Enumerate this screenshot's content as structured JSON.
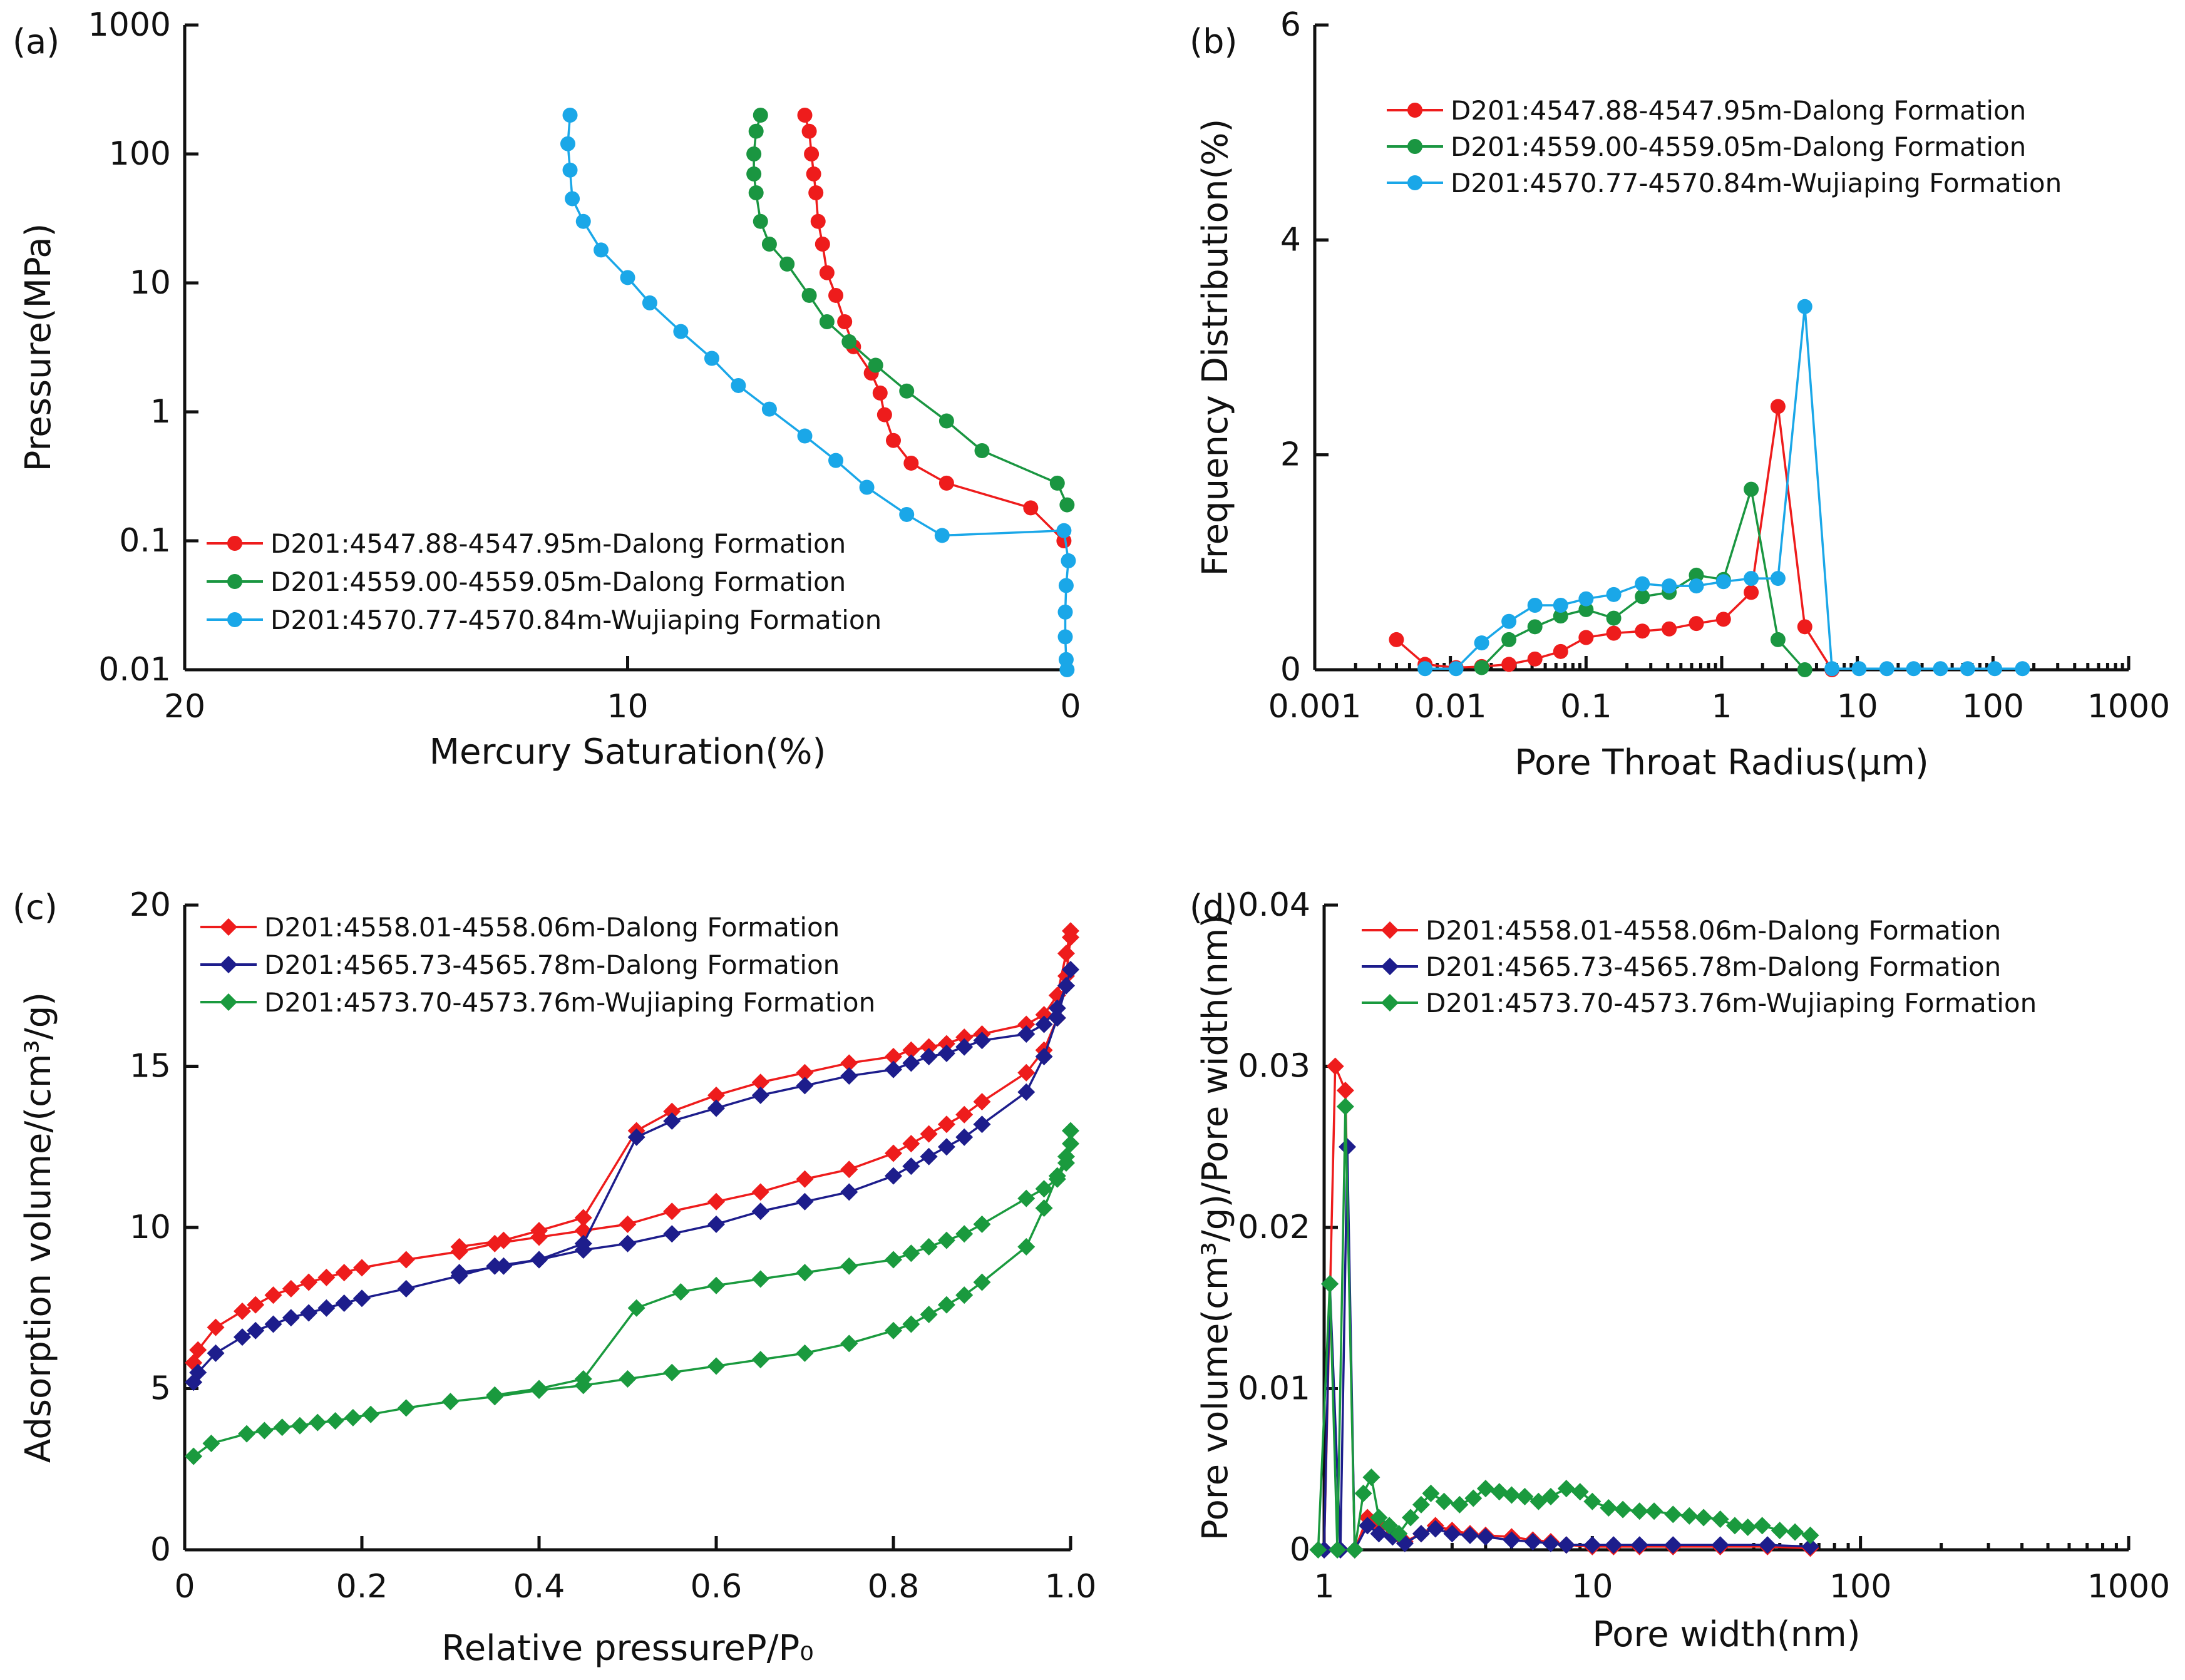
{
  "chart_data": [
    {
      "panel_label": "(a)",
      "type": "line",
      "xlabel": "Mercury Saturation(%)",
      "ylabel": "Pressure(MPa)",
      "xlim": [
        20,
        0
      ],
      "ylim": [
        0.01,
        1000
      ],
      "x_scale": "linear-reversed",
      "y_scale": "log",
      "x_ticks": [
        20,
        10,
        0
      ],
      "x_tick_labels": [
        "20",
        "10",
        "0"
      ],
      "y_ticks": [
        0.01,
        0.1,
        1,
        10,
        100,
        1000
      ],
      "y_tick_labels": [
        "0.01",
        "0.1",
        "1",
        "10",
        "100",
        "1000"
      ],
      "legend_position": "bottom-left",
      "marker": "circle",
      "series": [
        {
          "name": "D201:4547.88-4547.95m-Dalong Formation",
          "color": "#ee1c1c",
          "x": [
            6.0,
            5.9,
            5.85,
            5.8,
            5.75,
            5.7,
            5.6,
            5.5,
            5.3,
            5.1,
            4.9,
            4.5,
            4.3,
            4.2,
            4.0,
            3.6,
            2.8,
            0.9,
            0.15
          ],
          "y": [
            200,
            150,
            100,
            70,
            50,
            30,
            20,
            12,
            8,
            5,
            3.2,
            2.0,
            1.4,
            0.95,
            0.6,
            0.4,
            0.28,
            0.18,
            0.1
          ]
        },
        {
          "name": "D201:4559.00-4559.05m-Dalong Formation",
          "color": "#1a9641",
          "x": [
            7.0,
            7.1,
            7.15,
            7.15,
            7.1,
            7.0,
            6.8,
            6.4,
            5.9,
            5.5,
            5.0,
            4.4,
            3.7,
            2.8,
            2.0,
            0.3,
            0.08
          ],
          "y": [
            200,
            150,
            100,
            70,
            50,
            30,
            20,
            14,
            8,
            5,
            3.5,
            2.3,
            1.45,
            0.85,
            0.5,
            0.28,
            0.19
          ]
        },
        {
          "name": "D201:4570.77-4570.84m-Wujiaping Formation",
          "color": "#1aa7e8",
          "x": [
            11.3,
            11.35,
            11.3,
            11.25,
            11.0,
            10.6,
            10.0,
            9.5,
            8.8,
            8.1,
            7.5,
            6.8,
            6.0,
            5.3,
            4.6,
            3.7,
            2.9,
            0.15,
            0.05,
            0.1,
            0.12,
            0.12,
            0.1,
            0.08
          ],
          "y": [
            200,
            120,
            75,
            45,
            30,
            18,
            11,
            7,
            4.2,
            2.6,
            1.6,
            1.05,
            0.65,
            0.42,
            0.26,
            0.16,
            0.11,
            0.12,
            0.07,
            0.045,
            0.028,
            0.018,
            0.012,
            0.01
          ]
        }
      ]
    },
    {
      "panel_label": "(b)",
      "type": "line",
      "xlabel": "Pore Throat Radius(μm)",
      "ylabel": "Frequency Distribution(%)",
      "xlim": [
        0.001,
        1000
      ],
      "ylim": [
        0,
        6
      ],
      "x_scale": "log",
      "y_scale": "linear",
      "x_ticks": [
        0.001,
        0.01,
        0.1,
        1,
        10,
        100,
        1000
      ],
      "x_tick_labels": [
        "0.001",
        "0.01",
        "0.1",
        "1",
        "10",
        "100",
        "1000"
      ],
      "y_ticks": [
        0,
        2,
        4,
        6
      ],
      "y_tick_labels": [
        "0",
        "2",
        "4",
        "6"
      ],
      "legend_position": "top-left",
      "marker": "circle",
      "series": [
        {
          "name": "D201:4547.88-4547.95m-Dalong Formation",
          "color": "#ee1c1c",
          "x": [
            0.004,
            0.0065,
            0.011,
            0.017,
            0.027,
            0.042,
            0.065,
            0.1,
            0.16,
            0.26,
            0.41,
            0.65,
            1.03,
            1.65,
            2.6,
            4.1,
            6.5
          ],
          "y": [
            0.28,
            0.05,
            0.02,
            0.03,
            0.05,
            0.1,
            0.17,
            0.3,
            0.34,
            0.36,
            0.38,
            0.43,
            0.47,
            0.72,
            2.45,
            0.4,
            0.0
          ]
        },
        {
          "name": "D201:4559.00-4559.05m-Dalong Formation",
          "color": "#1a9641",
          "x": [
            0.017,
            0.027,
            0.042,
            0.065,
            0.1,
            0.16,
            0.26,
            0.41,
            0.65,
            1.03,
            1.65,
            2.6,
            4.1
          ],
          "y": [
            0.02,
            0.28,
            0.4,
            0.5,
            0.56,
            0.48,
            0.68,
            0.72,
            0.88,
            0.84,
            1.68,
            0.28,
            0.0
          ]
        },
        {
          "name": "D201:4570.77-4570.84m-Wujiaping Formation",
          "color": "#1aa7e8",
          "x": [
            0.0065,
            0.011,
            0.017,
            0.027,
            0.042,
            0.065,
            0.1,
            0.16,
            0.26,
            0.41,
            0.65,
            1.03,
            1.65,
            2.6,
            4.1,
            6.5,
            10.3,
            16.5,
            26,
            41,
            65,
            103,
            165
          ],
          "y": [
            0.01,
            0.01,
            0.25,
            0.45,
            0.6,
            0.6,
            0.66,
            0.7,
            0.8,
            0.78,
            0.78,
            0.82,
            0.85,
            0.85,
            3.38,
            0.01,
            0.01,
            0.01,
            0.01,
            0.01,
            0.01,
            0.01,
            0.01
          ]
        }
      ]
    },
    {
      "panel_label": "(c)",
      "type": "line",
      "xlabel": "Relative pressureP/P₀",
      "ylabel": "Adsorption volume/(cm³/g)",
      "xlim": [
        0,
        1.0
      ],
      "ylim": [
        0,
        20
      ],
      "x_scale": "linear",
      "y_scale": "linear",
      "x_ticks": [
        0,
        0.2,
        0.4,
        0.6,
        0.8,
        1.0
      ],
      "x_tick_labels": [
        "0",
        "0.2",
        "0.4",
        "0.6",
        "0.8",
        "1.0"
      ],
      "y_ticks": [
        0,
        5,
        10,
        15,
        20
      ],
      "y_tick_labels": [
        "0",
        "5",
        "10",
        "15",
        "20"
      ],
      "legend_position": "top-left",
      "marker": "diamond",
      "series": [
        {
          "name": "D201:4558.01-4558.06m-Dalong Formation",
          "color": "#ee1c1c",
          "x": [
            0.01,
            0.015,
            0.035,
            0.065,
            0.08,
            0.1,
            0.12,
            0.14,
            0.16,
            0.18,
            0.2,
            0.25,
            0.31,
            0.35,
            0.4,
            0.45,
            0.5,
            0.55,
            0.6,
            0.65,
            0.7,
            0.75,
            0.8,
            0.82,
            0.84,
            0.86,
            0.88,
            0.9,
            0.95,
            0.97,
            0.985,
            0.995,
            1.0,
            1.0,
            0.995,
            0.985,
            0.97,
            0.95,
            0.9,
            0.88,
            0.86,
            0.84,
            0.82,
            0.8,
            0.75,
            0.7,
            0.65,
            0.6,
            0.55,
            0.51,
            0.45,
            0.4,
            0.36,
            0.31
          ],
          "y": [
            5.8,
            6.2,
            6.9,
            7.4,
            7.6,
            7.9,
            8.1,
            8.3,
            8.45,
            8.6,
            8.75,
            9.0,
            9.25,
            9.5,
            9.7,
            9.9,
            10.1,
            10.5,
            10.8,
            11.1,
            11.5,
            11.8,
            12.3,
            12.6,
            12.9,
            13.2,
            13.5,
            13.9,
            14.8,
            15.5,
            16.5,
            17.8,
            19.0,
            19.2,
            18.5,
            17.2,
            16.6,
            16.3,
            16.0,
            15.9,
            15.7,
            15.6,
            15.5,
            15.3,
            15.1,
            14.8,
            14.5,
            14.1,
            13.6,
            13.0,
            10.3,
            9.9,
            9.6,
            9.4
          ]
        },
        {
          "name": "D201:4565.73-4565.78m-Dalong Formation",
          "color": "#1d1d8c",
          "x": [
            0.01,
            0.015,
            0.035,
            0.065,
            0.08,
            0.1,
            0.12,
            0.14,
            0.16,
            0.18,
            0.2,
            0.25,
            0.31,
            0.35,
            0.4,
            0.45,
            0.5,
            0.55,
            0.6,
            0.65,
            0.7,
            0.75,
            0.8,
            0.82,
            0.84,
            0.86,
            0.88,
            0.9,
            0.95,
            0.97,
            0.985,
            0.995,
            1.0,
            0.995,
            0.985,
            0.97,
            0.95,
            0.9,
            0.88,
            0.86,
            0.84,
            0.82,
            0.8,
            0.75,
            0.7,
            0.65,
            0.6,
            0.55,
            0.51,
            0.45,
            0.4,
            0.36,
            0.31
          ],
          "y": [
            5.2,
            5.5,
            6.1,
            6.6,
            6.8,
            7.0,
            7.2,
            7.35,
            7.5,
            7.65,
            7.8,
            8.1,
            8.5,
            8.8,
            9.0,
            9.3,
            9.5,
            9.8,
            10.1,
            10.5,
            10.8,
            11.1,
            11.6,
            11.9,
            12.2,
            12.5,
            12.8,
            13.2,
            14.2,
            15.3,
            16.5,
            17.5,
            18.0,
            17.5,
            16.8,
            16.3,
            16.0,
            15.8,
            15.6,
            15.4,
            15.3,
            15.1,
            14.9,
            14.7,
            14.4,
            14.1,
            13.7,
            13.3,
            12.8,
            9.5,
            9.0,
            8.8,
            8.6
          ]
        },
        {
          "name": "D201:4573.70-4573.76m-Wujiaping Formation",
          "color": "#1a9a3e",
          "x": [
            0.01,
            0.03,
            0.07,
            0.09,
            0.11,
            0.13,
            0.15,
            0.17,
            0.19,
            0.21,
            0.25,
            0.3,
            0.35,
            0.4,
            0.45,
            0.5,
            0.55,
            0.6,
            0.65,
            0.7,
            0.75,
            0.8,
            0.82,
            0.84,
            0.86,
            0.88,
            0.9,
            0.95,
            0.97,
            0.985,
            0.995,
            1.0,
            1.0,
            0.995,
            0.985,
            0.97,
            0.95,
            0.9,
            0.88,
            0.86,
            0.84,
            0.82,
            0.8,
            0.75,
            0.7,
            0.65,
            0.6,
            0.56,
            0.51,
            0.45,
            0.4,
            0.35
          ],
          "y": [
            2.9,
            3.3,
            3.6,
            3.7,
            3.8,
            3.85,
            3.95,
            4.0,
            4.1,
            4.2,
            4.4,
            4.6,
            4.75,
            4.95,
            5.1,
            5.3,
            5.5,
            5.7,
            5.9,
            6.1,
            6.4,
            6.8,
            7.0,
            7.3,
            7.6,
            7.9,
            8.3,
            9.4,
            10.6,
            11.6,
            12.2,
            13.0,
            12.6,
            12.0,
            11.5,
            11.2,
            10.9,
            10.1,
            9.8,
            9.6,
            9.4,
            9.2,
            9.0,
            8.8,
            8.6,
            8.4,
            8.2,
            8.0,
            7.5,
            5.3,
            5.0,
            4.8
          ]
        }
      ]
    },
    {
      "panel_label": "(d)",
      "type": "line",
      "xlabel": "Pore width(nm)",
      "ylabel": "Pore volume(cm³/g)/Pore width(nm)",
      "xlim": [
        1,
        1000
      ],
      "ylim": [
        0,
        0.04
      ],
      "x_scale": "log",
      "y_scale": "linear",
      "x_ticks": [
        1,
        10,
        100,
        1000
      ],
      "x_tick_labels": [
        "1",
        "10",
        "100",
        "1000"
      ],
      "y_ticks": [
        0,
        0.01,
        0.02,
        0.03,
        0.04
      ],
      "y_tick_labels": [
        "0",
        "0.01",
        "0.02",
        "0.03",
        "0.04"
      ],
      "legend_position": "top-left",
      "marker": "diamond",
      "series": [
        {
          "name": "D201:4558.01-4558.06m-Dalong Formation",
          "color": "#ee1c1c",
          "x": [
            1.0,
            1.1,
            1.2,
            1.3,
            1.45,
            1.6,
            1.8,
            2.0,
            2.3,
            2.6,
            3.0,
            3.5,
            4.0,
            5.0,
            6.0,
            7.0,
            8.0,
            10,
            12,
            15,
            20,
            30,
            45,
            65
          ],
          "y": [
            0.0,
            0.03,
            0.0285,
            0.0,
            0.002,
            0.0015,
            0.001,
            0.0005,
            0.001,
            0.0015,
            0.0012,
            0.001,
            0.0009,
            0.0008,
            0.0006,
            0.0005,
            0.0003,
            0.0002,
            0.0002,
            0.0002,
            0.0002,
            0.0002,
            0.0002,
            0.0001
          ]
        },
        {
          "name": "D201:4565.73-4565.78m-Dalong Formation",
          "color": "#1d1d8c",
          "x": [
            1.0,
            1.05,
            1.15,
            1.22,
            1.3,
            1.45,
            1.6,
            1.8,
            2.0,
            2.3,
            2.6,
            3.0,
            3.5,
            4.0,
            5.0,
            6.0,
            7.0,
            8.0,
            10,
            12,
            15,
            20,
            30,
            45,
            65
          ],
          "y": [
            0.0,
            0.0165,
            0.0,
            0.025,
            0.0,
            0.0015,
            0.001,
            0.0008,
            0.0004,
            0.001,
            0.0013,
            0.001,
            0.0009,
            0.0008,
            0.0006,
            0.0005,
            0.0004,
            0.0003,
            0.0003,
            0.0003,
            0.0003,
            0.0003,
            0.0003,
            0.0003,
            0.0002
          ]
        },
        {
          "name": "D201:4573.70-4573.76m-Wujiaping Formation",
          "color": "#1a9a3e",
          "x": [
            0.95,
            1.05,
            1.12,
            1.2,
            1.3,
            1.4,
            1.5,
            1.6,
            1.75,
            1.9,
            2.1,
            2.3,
            2.5,
            2.8,
            3.2,
            3.6,
            4.0,
            4.5,
            5.0,
            5.6,
            6.3,
            7.0,
            8.0,
            9.0,
            10,
            11.5,
            13,
            15,
            17,
            20,
            23,
            26,
            30,
            34,
            38,
            43,
            50,
            57,
            65
          ],
          "y": [
            0.0,
            0.0165,
            0.0,
            0.0275,
            0.0,
            0.0035,
            0.0045,
            0.002,
            0.0015,
            0.001,
            0.002,
            0.0028,
            0.0035,
            0.003,
            0.0028,
            0.0032,
            0.0038,
            0.0036,
            0.0034,
            0.0033,
            0.003,
            0.0033,
            0.0038,
            0.0036,
            0.003,
            0.0026,
            0.0025,
            0.0024,
            0.0024,
            0.0022,
            0.0021,
            0.002,
            0.0019,
            0.0015,
            0.0014,
            0.0015,
            0.0012,
            0.0011,
            0.0009
          ]
        }
      ]
    }
  ]
}
